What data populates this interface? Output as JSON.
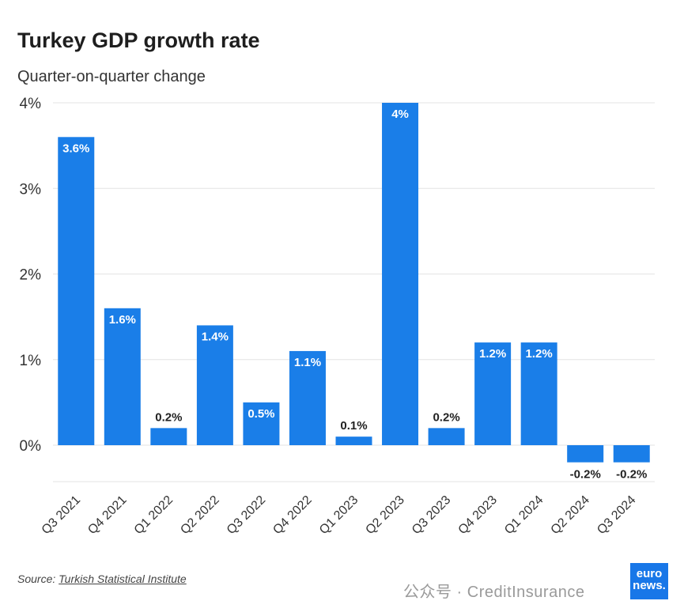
{
  "title": "Turkey GDP growth rate",
  "subtitle": "Quarter-on-quarter change",
  "source_label": "Source:",
  "source_name": "Turkish Statistical Institute",
  "watermark": "公众号 · CreditInsurance",
  "logo": {
    "line1": "euro",
    "line2": "news."
  },
  "colors": {
    "bar": "#1a7ee8",
    "grid": "#e3e3e3",
    "label_inside": "#ffffff",
    "label_outside": "#222222"
  },
  "chart_data": {
    "type": "bar",
    "title": "Turkey GDP growth rate",
    "subtitle": "Quarter-on-quarter change",
    "categories": [
      "Q3 2021",
      "Q4 2021",
      "Q1 2022",
      "Q2 2022",
      "Q3 2022",
      "Q4 2022",
      "Q1 2023",
      "Q2 2023",
      "Q3 2023",
      "Q4 2023",
      "Q1 2024",
      "Q2 2024",
      "Q3 2024"
    ],
    "values": [
      3.6,
      1.6,
      0.2,
      1.4,
      0.5,
      1.1,
      0.1,
      4,
      0.2,
      1.2,
      1.2,
      -0.2,
      -0.2
    ],
    "data_labels": [
      "3.6%",
      "1.6%",
      "0.2%",
      "1.4%",
      "0.5%",
      "1.1%",
      "0.1%",
      "4%",
      "0.2%",
      "1.2%",
      "1.2%",
      "-0.2%",
      "-0.2%"
    ],
    "yticks": [
      0,
      1,
      2,
      3,
      4
    ],
    "ytick_labels": [
      "0%",
      "1%",
      "2%",
      "3%",
      "4%"
    ],
    "ylim": [
      -0.5,
      4
    ],
    "grid": true,
    "legend": "none"
  }
}
